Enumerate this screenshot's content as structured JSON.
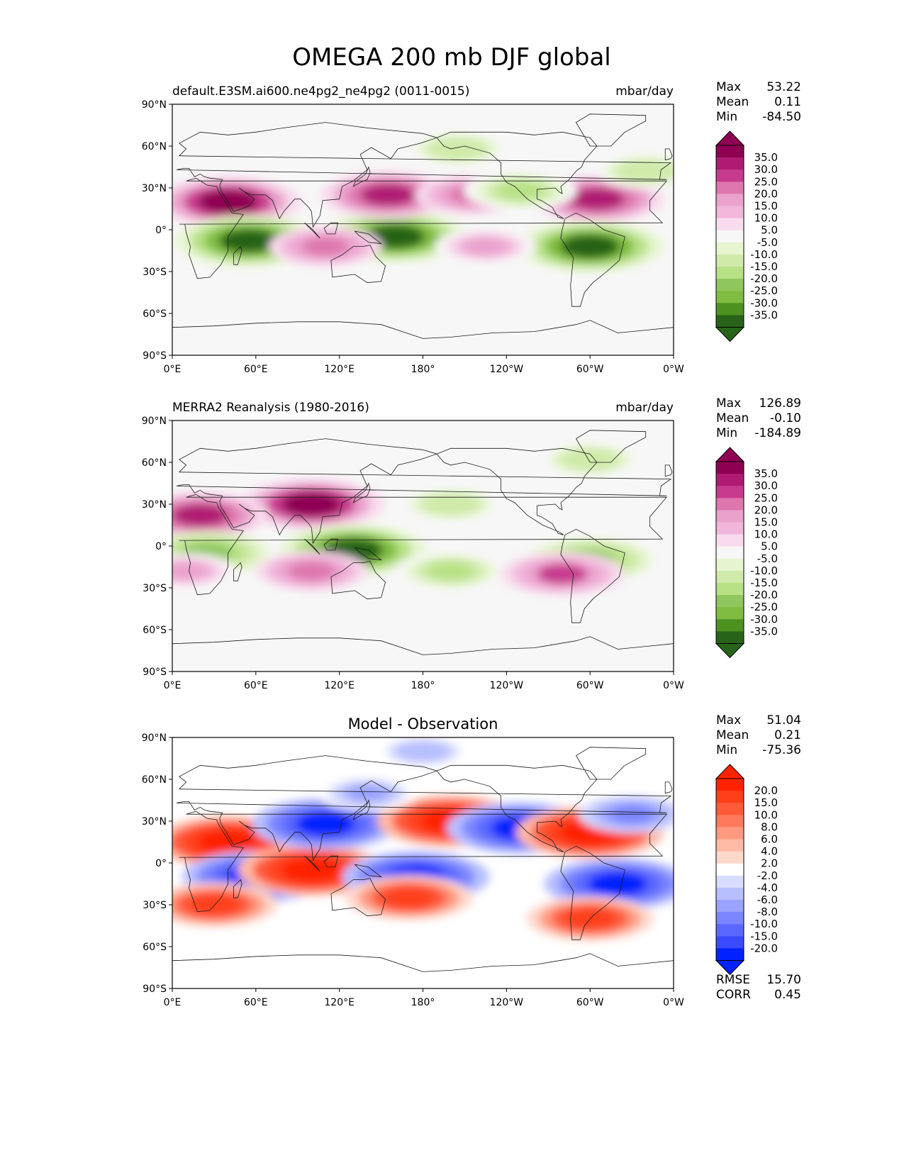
{
  "title": "OMEGA 200 mb DJF global",
  "colors": {
    "land_outline": "#1a1a1a",
    "pos_strong": "#8e0152",
    "neg_strong": "#276419",
    "diff_pos": "#ff2200",
    "diff_neg": "#0022ff"
  },
  "chart_data": [
    {
      "type": "heatmap",
      "panel": "test",
      "title_left": "default.E3SM.ai600.ne4pg2_ne4pg2 (0011-0015)",
      "title_right": "mbar/day",
      "stats": [
        {
          "label": "Max",
          "value": "53.22"
        },
        {
          "label": "Mean",
          "value": "0.11"
        },
        {
          "label": "Min",
          "value": "-84.50"
        }
      ],
      "colorbar_labels": [
        "35.0",
        "30.0",
        "25.0",
        "20.0",
        "15.0",
        "10.0",
        "5.0",
        "-5.0",
        "-10.0",
        "-15.0",
        "-20.0",
        "-25.0",
        "-30.0",
        "-35.0"
      ],
      "colormap": "PiYG",
      "xlabel_ticks": [
        "0°E",
        "60°E",
        "120°E",
        "180°",
        "120°W",
        "60°W",
        "0°W"
      ],
      "ylabel_ticks": [
        "90°N",
        "60°N",
        "30°N",
        "0°",
        "30°S",
        "60°S",
        "90°S"
      ],
      "xlim": [
        0,
        360
      ],
      "ylim": [
        -90,
        90
      ],
      "features": [
        {
          "lon": 40,
          "lat": 20,
          "value": 35
        },
        {
          "lon": 55,
          "lat": -8,
          "value": -35
        },
        {
          "lon": 160,
          "lat": -5,
          "value": -35
        },
        {
          "lon": 155,
          "lat": 25,
          "value": 30
        },
        {
          "lon": 215,
          "lat": 25,
          "value": 20
        },
        {
          "lon": 305,
          "lat": 22,
          "value": 30
        },
        {
          "lon": 300,
          "lat": -12,
          "value": -35
        },
        {
          "lon": 250,
          "lat": 28,
          "value": -20
        },
        {
          "lon": 110,
          "lat": -12,
          "value": 20
        },
        {
          "lon": 205,
          "lat": 58,
          "value": -15
        },
        {
          "lon": 340,
          "lat": 42,
          "value": -15
        },
        {
          "lon": 225,
          "lat": -12,
          "value": 15
        }
      ]
    },
    {
      "type": "heatmap",
      "panel": "reference",
      "title_left": "MERRA2 Reanalysis (1980-2016)",
      "title_right": "mbar/day",
      "stats": [
        {
          "label": "Max",
          "value": "126.89"
        },
        {
          "label": "Mean",
          "value": "-0.10"
        },
        {
          "label": "Min",
          "value": "-184.89"
        }
      ],
      "colorbar_labels": [
        "35.0",
        "30.0",
        "25.0",
        "20.0",
        "15.0",
        "10.0",
        "5.0",
        "-5.0",
        "-10.0",
        "-15.0",
        "-20.0",
        "-25.0",
        "-30.0",
        "-35.0"
      ],
      "colormap": "PiYG",
      "xlabel_ticks": [
        "0°E",
        "60°E",
        "120°E",
        "180°",
        "120°W",
        "60°W",
        "0°W"
      ],
      "ylabel_ticks": [
        "90°N",
        "60°N",
        "30°N",
        "0°",
        "30°S",
        "60°S",
        "90°S"
      ],
      "xlim": [
        0,
        360
      ],
      "ylim": [
        -90,
        90
      ],
      "features": [
        {
          "lon": 100,
          "lat": 30,
          "value": 35
        },
        {
          "lon": 20,
          "lat": 22,
          "value": 30
        },
        {
          "lon": 130,
          "lat": -3,
          "value": -35
        },
        {
          "lon": 25,
          "lat": -5,
          "value": -25
        },
        {
          "lon": 300,
          "lat": -10,
          "value": -25
        },
        {
          "lon": 200,
          "lat": -18,
          "value": -20
        },
        {
          "lon": 200,
          "lat": 30,
          "value": -15
        },
        {
          "lon": 300,
          "lat": 62,
          "value": -15
        },
        {
          "lon": 280,
          "lat": -20,
          "value": 25
        },
        {
          "lon": 100,
          "lat": -18,
          "value": 20
        },
        {
          "lon": 10,
          "lat": -18,
          "value": 15
        }
      ]
    },
    {
      "type": "heatmap",
      "panel": "difference",
      "title_center": "Model - Observation",
      "stats": [
        {
          "label": "Max",
          "value": "51.04"
        },
        {
          "label": "Mean",
          "value": "0.21"
        },
        {
          "label": "Min",
          "value": "-75.36"
        }
      ],
      "metrics": [
        {
          "label": "RMSE",
          "value": "15.70"
        },
        {
          "label": "CORR",
          "value": "0.45"
        }
      ],
      "colorbar_labels": [
        "20.0",
        "15.0",
        "10.0",
        "8.0",
        "6.0",
        "4.0",
        "2.0",
        "-2.0",
        "-4.0",
        "-6.0",
        "-8.0",
        "-10.0",
        "-15.0",
        "-20.0"
      ],
      "colormap": "bwr",
      "xlabel_ticks": [
        "0°E",
        "60°E",
        "120°E",
        "180°",
        "120°W",
        "60°W",
        "0°W"
      ],
      "ylabel_ticks": [
        "90°N",
        "60°N",
        "30°N",
        "0°",
        "30°S",
        "60°S",
        "90°S"
      ],
      "xlim": [
        0,
        360
      ],
      "ylim": [
        -90,
        90
      ],
      "features": [
        {
          "lon": 40,
          "lat": 15,
          "value": 20
        },
        {
          "lon": 60,
          "lat": -10,
          "value": -20
        },
        {
          "lon": 100,
          "lat": -5,
          "value": 20
        },
        {
          "lon": 110,
          "lat": 28,
          "value": -20
        },
        {
          "lon": 200,
          "lat": 30,
          "value": 20
        },
        {
          "lon": 175,
          "lat": -10,
          "value": -20
        },
        {
          "lon": 250,
          "lat": 25,
          "value": -20
        },
        {
          "lon": 300,
          "lat": 22,
          "value": 20
        },
        {
          "lon": 320,
          "lat": -15,
          "value": -20
        },
        {
          "lon": 170,
          "lat": -25,
          "value": 15
        },
        {
          "lon": 30,
          "lat": -30,
          "value": 15
        },
        {
          "lon": 300,
          "lat": -40,
          "value": 15
        },
        {
          "lon": 330,
          "lat": 35,
          "value": -10
        },
        {
          "lon": 140,
          "lat": 50,
          "value": -8
        },
        {
          "lon": 180,
          "lat": 80,
          "value": -6
        }
      ]
    }
  ]
}
